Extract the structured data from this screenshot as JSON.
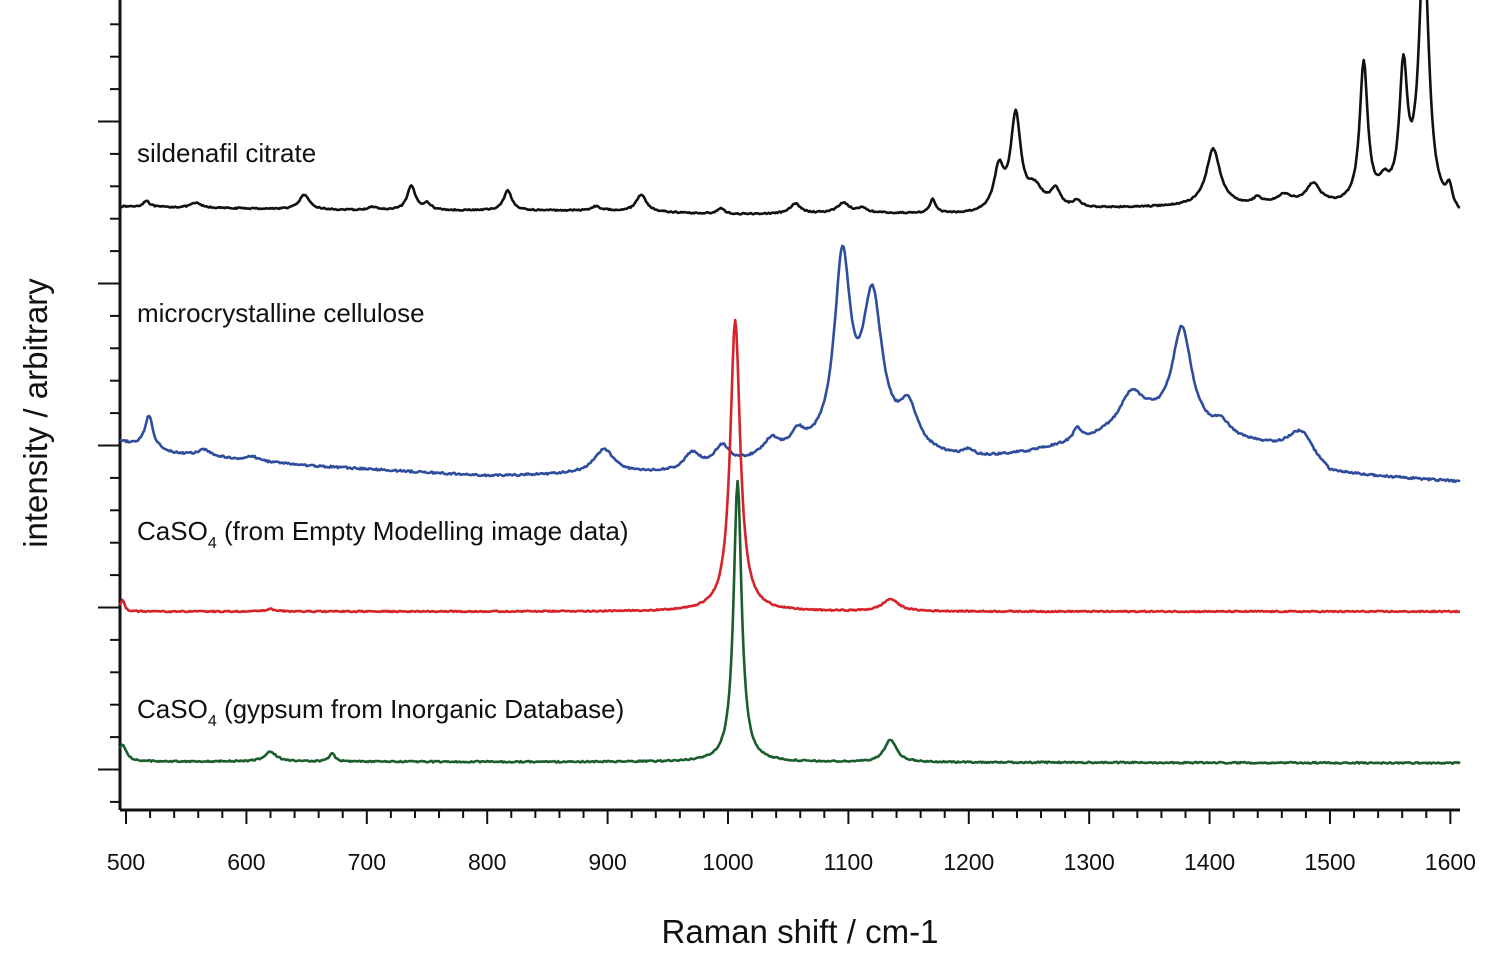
{
  "chart_data": {
    "type": "line",
    "xlabel": "Raman shift / cm-1",
    "ylabel": "intensity / arbitrary",
    "xlim": [
      495,
      1608
    ],
    "ylim": [
      0,
      1
    ],
    "grid": false,
    "legend": "labels placed above each trace",
    "xticks": [
      500,
      600,
      700,
      800,
      900,
      1000,
      1100,
      1200,
      1300,
      1400,
      1500,
      1600
    ],
    "xtick_labels": [
      "500",
      "600",
      "700",
      "800",
      "900",
      "1000",
      "1100",
      "1200",
      "1300",
      "1400",
      "1500",
      "1600"
    ],
    "yticks_major": [
      0.05,
      0.25,
      0.45,
      0.65,
      0.85,
      1.05
    ],
    "series": [
      {
        "name": "sildenafil citrate",
        "label_main": "sildenafil citrate",
        "label_sub": "",
        "label_tail": "",
        "color": "#111111",
        "baseline": 0.735,
        "noise": 0.0008,
        "anchors": [
          [
            495,
            0.745
          ],
          [
            700,
            0.74
          ],
          [
            900,
            0.74
          ],
          [
            1000,
            0.735
          ],
          [
            1100,
            0.737
          ],
          [
            1200,
            0.735
          ],
          [
            1300,
            0.742
          ],
          [
            1400,
            0.745
          ],
          [
            1500,
            0.745
          ],
          [
            1570,
            0.745
          ],
          [
            1608,
            0.73
          ]
        ],
        "peaks": [
          [
            517,
            0.008,
            3
          ],
          [
            558,
            0.006,
            5
          ],
          [
            648,
            0.018,
            5
          ],
          [
            705,
            0.004,
            5
          ],
          [
            737,
            0.03,
            4
          ],
          [
            750,
            0.008,
            4
          ],
          [
            817,
            0.025,
            4
          ],
          [
            890,
            0.005,
            4
          ],
          [
            928,
            0.021,
            5
          ],
          [
            994,
            0.007,
            4
          ],
          [
            1056,
            0.012,
            5
          ],
          [
            1096,
            0.012,
            6
          ],
          [
            1112,
            0.006,
            4
          ],
          [
            1170,
            0.017,
            3
          ],
          [
            1225,
            0.05,
            5
          ],
          [
            1239,
            0.115,
            5
          ],
          [
            1255,
            0.025,
            8
          ],
          [
            1272,
            0.022,
            5
          ],
          [
            1290,
            0.008,
            4
          ],
          [
            1403,
            0.07,
            7
          ],
          [
            1440,
            0.008,
            4
          ],
          [
            1462,
            0.012,
            8
          ],
          [
            1486,
            0.025,
            7
          ],
          [
            1528,
            0.173,
            4
          ],
          [
            1545,
            0.02,
            5
          ],
          [
            1561,
            0.158,
            4
          ],
          [
            1578,
            0.32,
            5
          ],
          [
            1599,
            0.025,
            3
          ]
        ]
      },
      {
        "name": "microcrystalline cellulose",
        "label_main": "microcrystalline cellulose",
        "label_sub": "",
        "label_tail": "",
        "color": "#2e4d9c",
        "baseline": 0.41,
        "noise": 0.0012,
        "anchors": [
          [
            495,
            0.455
          ],
          [
            540,
            0.44
          ],
          [
            650,
            0.425
          ],
          [
            800,
            0.412
          ],
          [
            960,
            0.416
          ],
          [
            1050,
            0.435
          ],
          [
            1100,
            0.445
          ],
          [
            1200,
            0.43
          ],
          [
            1250,
            0.44
          ],
          [
            1300,
            0.455
          ],
          [
            1350,
            0.475
          ],
          [
            1420,
            0.455
          ],
          [
            1480,
            0.44
          ],
          [
            1500,
            0.415
          ],
          [
            1608,
            0.405
          ]
        ],
        "peaks": [
          [
            519,
            0.04,
            4
          ],
          [
            565,
            0.008,
            6
          ],
          [
            605,
            0.005,
            6
          ],
          [
            897,
            0.03,
            10
          ],
          [
            970,
            0.02,
            8
          ],
          [
            995,
            0.023,
            7
          ],
          [
            1036,
            0.02,
            8
          ],
          [
            1058,
            0.02,
            7
          ],
          [
            1095,
            0.225,
            8
          ],
          [
            1120,
            0.18,
            10
          ],
          [
            1150,
            0.05,
            9
          ],
          [
            1200,
            0.01,
            6
          ],
          [
            1290,
            0.015,
            4
          ],
          [
            1335,
            0.042,
            12
          ],
          [
            1377,
            0.125,
            10
          ],
          [
            1410,
            0.015,
            8
          ],
          [
            1475,
            0.025,
            12
          ]
        ]
      },
      {
        "name": "CaSO4 (from Empty Modelling image data)",
        "label_main": "CaSO",
        "label_sub": "4",
        "label_tail": " (from Empty Modelling image data)",
        "color": "#d6232a",
        "baseline": 0.243,
        "noise": 0.0008,
        "anchors": [
          [
            495,
            0.245
          ],
          [
            1608,
            0.245
          ]
        ],
        "peaks": [
          [
            497,
            0.015,
            2
          ],
          [
            620,
            0.003,
            5
          ],
          [
            1006,
            0.36,
            5
          ],
          [
            1135,
            0.015,
            8
          ]
        ]
      },
      {
        "name": "CaSO4 (gypsum from Inorganic Database)",
        "label_main": "CaSO",
        "label_sub": "4",
        "label_tail": " (gypsum from Inorganic Database)",
        "color": "#1b5e2d",
        "baseline": 0.057,
        "noise": 0.0009,
        "anchors": [
          [
            495,
            0.06
          ],
          [
            1608,
            0.058
          ]
        ],
        "peaks": [
          [
            497,
            0.02,
            4
          ],
          [
            620,
            0.012,
            6
          ],
          [
            671,
            0.01,
            3
          ],
          [
            1008,
            0.347,
            4
          ],
          [
            1135,
            0.028,
            6
          ]
        ]
      }
    ]
  }
}
